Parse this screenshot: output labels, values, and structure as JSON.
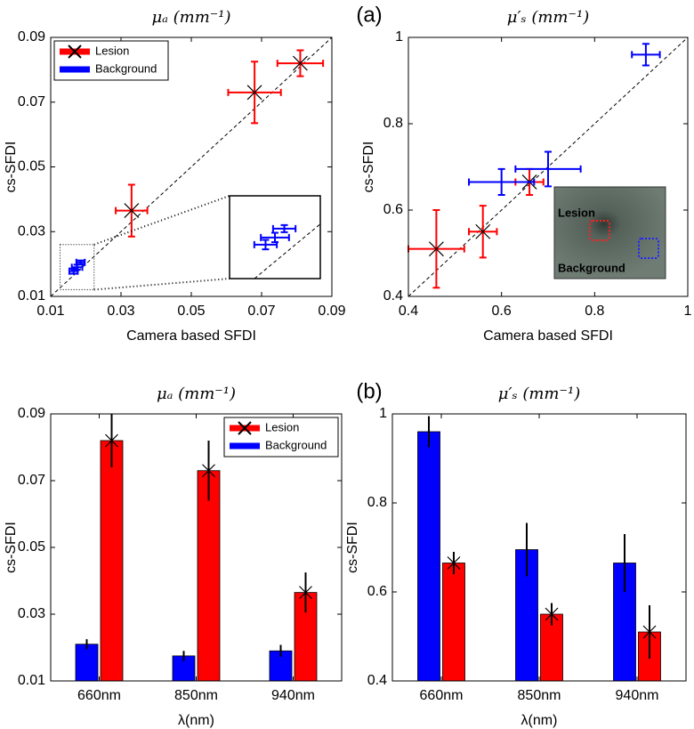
{
  "chart_data": [
    {
      "type": "scatter",
      "panel_label": "(a)",
      "title": "μₐ (mm⁻¹)",
      "xlabel": "Camera based SFDI",
      "ylabel": "cs-SFDI",
      "xlim": [
        0.01,
        0.09
      ],
      "ylim": [
        0.01,
        0.09
      ],
      "xticks": [
        0.01,
        0.03,
        0.05,
        0.07,
        0.09
      ],
      "yticks": [
        0.01,
        0.03,
        0.05,
        0.07,
        0.09
      ],
      "identity_line": true,
      "zoom_inset": true,
      "legend": "upper left",
      "series": [
        {
          "name": "Lesion",
          "color": "#ff0000",
          "marker": "x",
          "x": [
            0.033,
            0.068,
            0.081
          ],
          "values": [
            0.0365,
            0.073,
            0.082
          ],
          "xerr": [
            0.0045,
            0.0075,
            0.0065
          ],
          "yerr": [
            0.008,
            0.0095,
            0.004
          ]
        },
        {
          "name": "Background",
          "color": "#0000ff",
          "x": [
            0.0185,
            0.0175,
            0.0165
          ],
          "values": [
            0.0205,
            0.019,
            0.0178
          ],
          "xerr": [
            0.0012,
            0.0015,
            0.0012
          ],
          "yerr": [
            0.0006,
            0.0008,
            0.0008
          ]
        }
      ]
    },
    {
      "type": "scatter",
      "title": "μ′ₛ (mm⁻¹)",
      "xlabel": "Camera based SFDI",
      "ylabel": "cs-SFDI",
      "xlim": [
        0.4,
        1
      ],
      "ylim": [
        0.4,
        1
      ],
      "xticks": [
        0.4,
        0.6,
        0.8,
        1
      ],
      "yticks": [
        0.4,
        0.6,
        0.8,
        1
      ],
      "identity_line": true,
      "inset_image": {
        "labels": [
          "Lesion",
          "Background"
        ]
      },
      "series": [
        {
          "name": "Lesion",
          "color": "#ff0000",
          "marker": "x",
          "x": [
            0.66,
            0.56,
            0.46
          ],
          "values": [
            0.665,
            0.55,
            0.51
          ],
          "xerr": [
            0.03,
            0.03,
            0.06
          ],
          "yerr": [
            0.03,
            0.06,
            0.09
          ]
        },
        {
          "name": "Background",
          "color": "#0000ff",
          "x": [
            0.91,
            0.7,
            0.6
          ],
          "values": [
            0.96,
            0.695,
            0.665
          ],
          "xerr": [
            0.03,
            0.07,
            0.07
          ],
          "yerr": [
            0.025,
            0.04,
            0.03
          ]
        }
      ]
    },
    {
      "type": "bar",
      "panel_label": "(b)",
      "title": "μₐ (mm⁻¹)",
      "xlabel": "λ(nm)",
      "ylabel": "cs-SFDI",
      "categories": [
        "660nm",
        "850nm",
        "940nm"
      ],
      "ylim": [
        0.01,
        0.09
      ],
      "yticks": [
        0.01,
        0.03,
        0.05,
        0.07,
        0.09
      ],
      "legend": "upper right",
      "series": [
        {
          "name": "Lesion",
          "color": "#ff0000",
          "marker": "x",
          "values": [
            0.082,
            0.073,
            0.0365
          ],
          "errors": [
            0.008,
            0.009,
            0.006
          ]
        },
        {
          "name": "Background",
          "color": "#0000ff",
          "values": [
            0.021,
            0.0175,
            0.019
          ],
          "errors": [
            0.0015,
            0.0015,
            0.0018
          ]
        }
      ]
    },
    {
      "type": "bar",
      "title": "μ′ₛ (mm⁻¹)",
      "xlabel": "λ(nm)",
      "ylabel": "cs-SFDI",
      "categories": [
        "660nm",
        "850nm",
        "940nm"
      ],
      "ylim": [
        0.4,
        1
      ],
      "yticks": [
        0.4,
        0.6,
        0.8,
        1
      ],
      "series": [
        {
          "name": "Lesion",
          "color": "#ff0000",
          "marker": "x",
          "values": [
            0.665,
            0.55,
            0.51
          ],
          "errors": [
            0.025,
            0.025,
            0.06
          ]
        },
        {
          "name": "Background",
          "color": "#0000ff",
          "values": [
            0.96,
            0.695,
            0.665
          ],
          "errors": [
            0.035,
            0.06,
            0.065
          ]
        }
      ]
    }
  ]
}
